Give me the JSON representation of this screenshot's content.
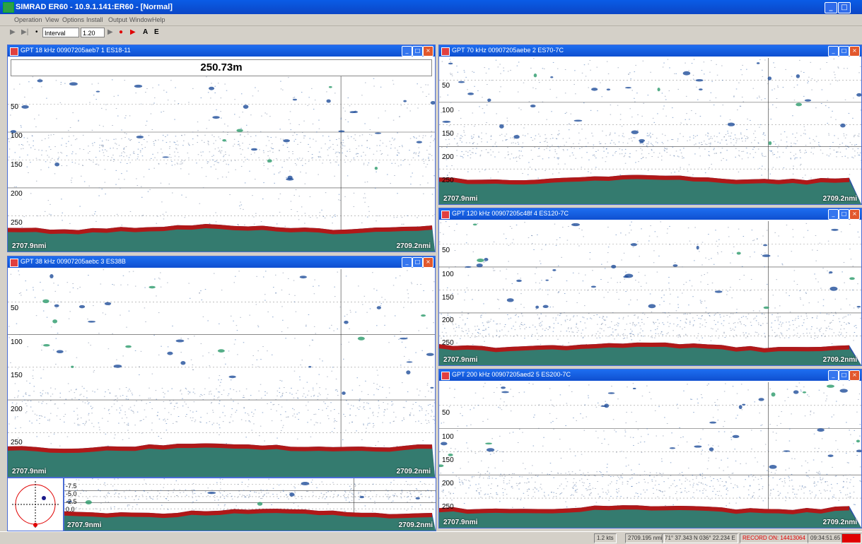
{
  "app": {
    "title": "SIMRAD ER60 - 10.9.1.141:ER60 - [Normal]",
    "menu": [
      "Operation",
      "View",
      "Options",
      "Install",
      "Output",
      "Window",
      "Help"
    ],
    "toolbar": {
      "mode_value": "Interval",
      "interval_value": "1.20",
      "a_label": "A",
      "e_label": "E"
    }
  },
  "panes": [
    {
      "title": "GPT  18 kHz 00907205aeb7 1 ES18-11",
      "depth_readout": "250.73m",
      "depth_ticks": [
        "50",
        "100",
        "150",
        "200",
        "250"
      ],
      "nmi_left": "2707.9nmi",
      "nmi_right": "2709.2nmi"
    },
    {
      "title": "GPT  38 kHz 00907205aebc 3 ES38B",
      "depth_ticks": [
        "50",
        "100",
        "150",
        "200",
        "250"
      ],
      "nmi_left": "2707.9nmi",
      "nmi_right": "2709.2nmi"
    },
    {
      "title": "GPT  70 kHz 00907205aebe 2 ES70-7C",
      "depth_ticks": [
        "50",
        "100",
        "150",
        "200",
        "250"
      ],
      "nmi_left": "2707.9nmi",
      "nmi_right": "2709.2nmi"
    },
    {
      "title": "GPT 120 kHz 00907205c48f 4 ES120-7C",
      "depth_ticks": [
        "50",
        "100",
        "150",
        "200",
        "250"
      ],
      "nmi_left": "2707.9nmi",
      "nmi_right": "2709.2nmi"
    },
    {
      "title": "GPT 200 kHz 00907205aed2 5 ES200-7C",
      "depth_ticks": [
        "50",
        "100",
        "150",
        "200",
        "250"
      ],
      "nmi_left": "2707.9nmi",
      "nmi_right": "2709.2nmi"
    }
  ],
  "mini_echogram": {
    "scale": [
      "-7.5",
      "-5.0",
      "-2.5",
      "0.0"
    ],
    "nmi_left": "2707.9nmi",
    "nmi_right": "2709.2nmi"
  },
  "status": {
    "speed": "1.2 kts",
    "distance": "2709.195 nmi",
    "position": "71° 37.343 N  036° 22.234 E",
    "record": "RECORD ON: 14413064",
    "time": "09:34:51.65"
  },
  "colors": {
    "title_blue": "#0b46c6",
    "bottom_red": "#b01818",
    "echo_blue": "#2b5fa8",
    "record_red": "#e00000"
  },
  "icons": [
    "app-icon",
    "minimize-icon",
    "maximize-icon",
    "close-icon",
    "play-icon",
    "record-icon",
    "compass-icon"
  ]
}
